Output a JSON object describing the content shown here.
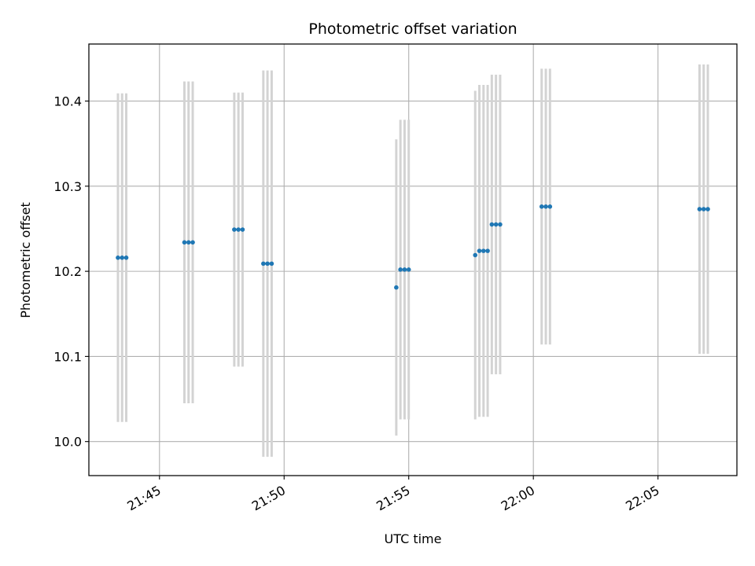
{
  "chart_data": {
    "type": "scatter",
    "title": "Photometric offset variation",
    "xlabel": "UTC time",
    "ylabel": "Photometric offset",
    "xlim": [
      "21:42:10",
      "22:08:10"
    ],
    "ylim": [
      9.96,
      10.467
    ],
    "grid": true,
    "x_ticks": [
      {
        "t": "21:45:00",
        "label": "21:45"
      },
      {
        "t": "21:50:00",
        "label": "21:50"
      },
      {
        "t": "21:55:00",
        "label": "21:55"
      },
      {
        "t": "22:00:00",
        "label": "22:00"
      },
      {
        "t": "22:05:00",
        "label": "22:05"
      }
    ],
    "y_ticks": [
      {
        "v": 10.0,
        "label": "10.0"
      },
      {
        "v": 10.1,
        "label": "10.1"
      },
      {
        "v": 10.2,
        "label": "10.2"
      },
      {
        "v": 10.3,
        "label": "10.3"
      },
      {
        "v": 10.4,
        "label": "10.4"
      }
    ],
    "marker_color": "#1f77b4",
    "errorbar_color": "#d3d3d3",
    "points": [
      {
        "t": "21:43:20",
        "y": 10.216,
        "yerr": 0.193
      },
      {
        "t": "21:43:30",
        "y": 10.216,
        "yerr": 0.193
      },
      {
        "t": "21:43:40",
        "y": 10.216,
        "yerr": 0.193
      },
      {
        "t": "21:46:00",
        "y": 10.234,
        "yerr": 0.189
      },
      {
        "t": "21:46:10",
        "y": 10.234,
        "yerr": 0.189
      },
      {
        "t": "21:46:20",
        "y": 10.234,
        "yerr": 0.189
      },
      {
        "t": "21:48:00",
        "y": 10.249,
        "yerr": 0.161
      },
      {
        "t": "21:48:10",
        "y": 10.249,
        "yerr": 0.161
      },
      {
        "t": "21:48:20",
        "y": 10.249,
        "yerr": 0.161
      },
      {
        "t": "21:49:10",
        "y": 10.209,
        "yerr": 0.227
      },
      {
        "t": "21:49:20",
        "y": 10.209,
        "yerr": 0.227
      },
      {
        "t": "21:49:30",
        "y": 10.209,
        "yerr": 0.227
      },
      {
        "t": "21:54:30",
        "y": 10.181,
        "yerr": 0.174
      },
      {
        "t": "21:54:40",
        "y": 10.202,
        "yerr": 0.176
      },
      {
        "t": "21:54:50",
        "y": 10.202,
        "yerr": 0.176
      },
      {
        "t": "21:55:00",
        "y": 10.202,
        "yerr": 0.176
      },
      {
        "t": "21:57:40",
        "y": 10.219,
        "yerr": 0.193
      },
      {
        "t": "21:57:50",
        "y": 10.224,
        "yerr": 0.195
      },
      {
        "t": "21:58:00",
        "y": 10.224,
        "yerr": 0.195
      },
      {
        "t": "21:58:10",
        "y": 10.224,
        "yerr": 0.195
      },
      {
        "t": "21:58:20",
        "y": 10.255,
        "yerr": 0.176
      },
      {
        "t": "21:58:30",
        "y": 10.255,
        "yerr": 0.176
      },
      {
        "t": "21:58:40",
        "y": 10.255,
        "yerr": 0.176
      },
      {
        "t": "22:00:20",
        "y": 10.276,
        "yerr": 0.162
      },
      {
        "t": "22:00:30",
        "y": 10.276,
        "yerr": 0.162
      },
      {
        "t": "22:00:40",
        "y": 10.276,
        "yerr": 0.162
      },
      {
        "t": "22:06:40",
        "y": 10.273,
        "yerr": 0.17
      },
      {
        "t": "22:06:50",
        "y": 10.273,
        "yerr": 0.17
      },
      {
        "t": "22:07:00",
        "y": 10.273,
        "yerr": 0.17
      }
    ]
  }
}
